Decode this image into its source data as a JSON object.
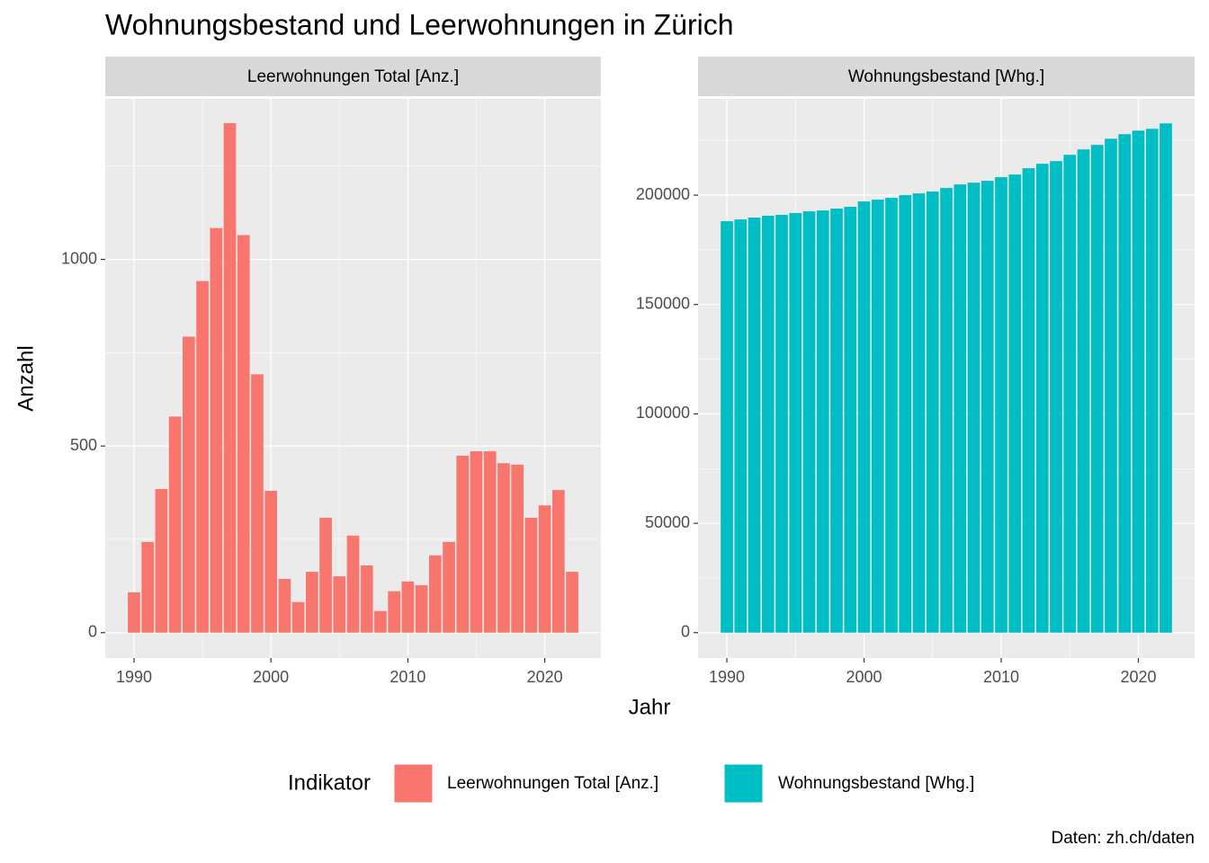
{
  "title": "Wohnungsbestand und Leerwohnungen in Zürich",
  "x_label": "Jahr",
  "y_label": "Anzahl",
  "legend_title": "Indikator",
  "caption": "Daten: zh.ch/daten",
  "chart_data": [
    {
      "type": "bar",
      "x": [
        1990,
        1991,
        1992,
        1993,
        1994,
        1995,
        1996,
        1997,
        1998,
        1999,
        2000,
        2001,
        2002,
        2003,
        2004,
        2005,
        2006,
        2007,
        2008,
        2009,
        2010,
        2011,
        2012,
        2013,
        2014,
        2015,
        2016,
        2017,
        2018,
        2019,
        2020,
        2021,
        2022
      ],
      "series": [
        {
          "name": "Leerwohnungen Total [Anz.]",
          "color": "#F8766D",
          "values": [
            108,
            243,
            385,
            579,
            793,
            942,
            1084,
            1365,
            1065,
            692,
            380,
            144,
            82,
            163,
            308,
            151,
            260,
            180,
            58,
            111,
            137,
            127,
            207,
            243,
            474,
            486,
            486,
            454,
            450,
            308,
            341,
            382,
            163
          ]
        }
      ],
      "xlim": [
        1987.9,
        2024.1
      ],
      "xticks": [
        1990,
        2000,
        2010,
        2020
      ],
      "ylim": [
        -68,
        1430
      ],
      "yticks": [
        0,
        500,
        1000
      ],
      "grid": true
    },
    {
      "type": "bar",
      "x": [
        1990,
        1991,
        1992,
        1993,
        1994,
        1995,
        1996,
        1997,
        1998,
        1999,
        2000,
        2001,
        2002,
        2003,
        2004,
        2005,
        2006,
        2007,
        2008,
        2009,
        2010,
        2011,
        2012,
        2013,
        2014,
        2015,
        2016,
        2017,
        2018,
        2019,
        2020,
        2021,
        2022
      ],
      "series": [
        {
          "name": "Wohnungsbestand [Whg.]",
          "color": "#00BFC4",
          "values": [
            188100,
            188900,
            189750,
            190600,
            191000,
            191800,
            192600,
            193000,
            193850,
            194670,
            197130,
            197950,
            198770,
            200000,
            200800,
            201640,
            203280,
            204900,
            205700,
            206560,
            208200,
            209430,
            212300,
            214340,
            215570,
            218440,
            220900,
            222950,
            225800,
            227870,
            229500,
            230330,
            232800
          ]
        }
      ],
      "xlim": [
        1987.9,
        2024.1
      ],
      "xticks": [
        1990,
        2000,
        2010,
        2020
      ],
      "ylim": [
        -11600,
        244000
      ],
      "yticks": [
        0,
        50000,
        100000,
        150000,
        200000
      ],
      "grid": true
    }
  ]
}
